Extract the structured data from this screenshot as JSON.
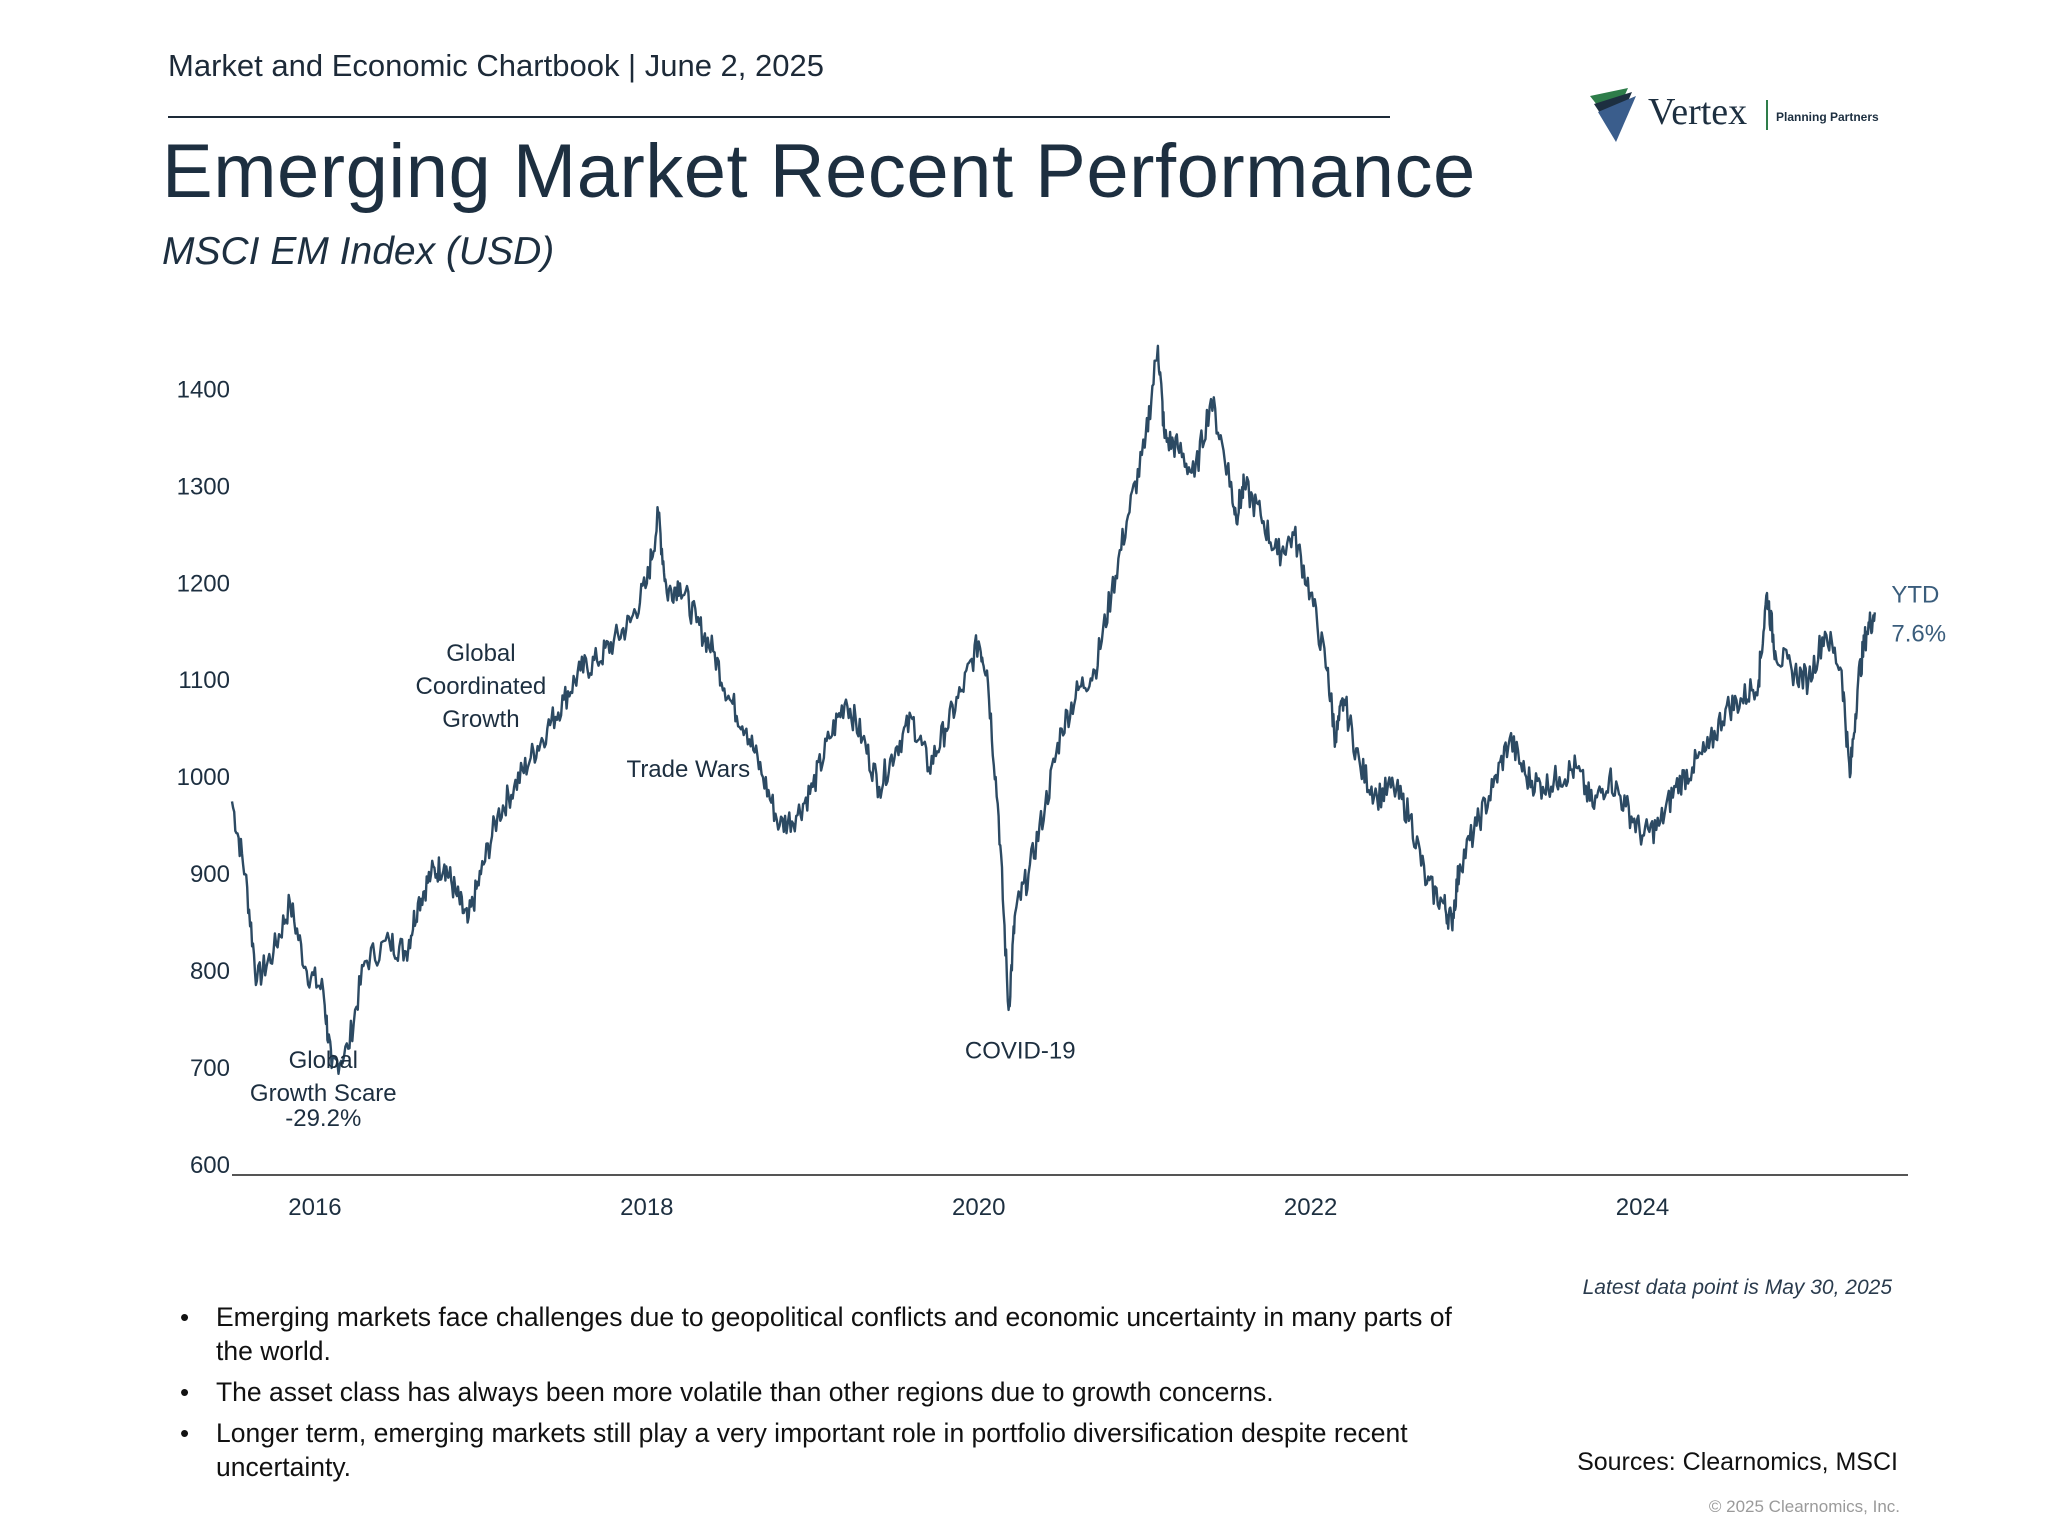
{
  "header": {
    "line": "Market and Economic Chartbook | June 2, 2025",
    "title": "Emerging Market Recent Performance",
    "subtitle": "MSCI EM Index (USD)"
  },
  "logo": {
    "name": "Vertex",
    "tagline": "Planning Partners",
    "icon": "chevron-stripes-icon"
  },
  "colors": {
    "line": "#2c4a63",
    "text": "#1d2f40",
    "axis": "#333333",
    "logo_green": "#2e7d4a"
  },
  "chart_data": {
    "type": "line",
    "title": "MSCI EM Index (USD)",
    "xlabel": "",
    "ylabel": "",
    "x_range": [
      2015.5,
      2025.6
    ],
    "ylim": [
      600,
      1420
    ],
    "y_ticks": [
      600,
      700,
      800,
      900,
      1000,
      1100,
      1200,
      1300,
      1400
    ],
    "x_ticks": [
      {
        "value": 2016,
        "label": "2016"
      },
      {
        "value": 2018,
        "label": "2018"
      },
      {
        "value": 2020,
        "label": "2020"
      },
      {
        "value": 2022,
        "label": "2022"
      },
      {
        "value": 2024,
        "label": "2024"
      }
    ],
    "grid": false,
    "series": [
      {
        "name": "MSCI EM Index (USD)",
        "x": [
          2015.5,
          2015.58,
          2015.65,
          2015.75,
          2015.85,
          2015.95,
          2016.05,
          2016.1,
          2016.2,
          2016.3,
          2016.45,
          2016.55,
          2016.62,
          2016.7,
          2016.78,
          2016.85,
          2016.92,
          2017.0,
          2017.1,
          2017.2,
          2017.3,
          2017.4,
          2017.5,
          2017.6,
          2017.7,
          2017.8,
          2017.9,
          2018.0,
          2018.07,
          2018.12,
          2018.2,
          2018.3,
          2018.4,
          2018.5,
          2018.6,
          2018.7,
          2018.8,
          2018.9,
          2019.0,
          2019.1,
          2019.2,
          2019.3,
          2019.4,
          2019.5,
          2019.6,
          2019.7,
          2019.8,
          2019.9,
          2020.0,
          2020.05,
          2020.12,
          2020.18,
          2020.22,
          2020.3,
          2020.4,
          2020.5,
          2020.6,
          2020.7,
          2020.8,
          2020.9,
          2021.0,
          2021.08,
          2021.12,
          2021.2,
          2021.3,
          2021.4,
          2021.5,
          2021.55,
          2021.6,
          2021.7,
          2021.8,
          2021.9,
          2022.0,
          2022.1,
          2022.15,
          2022.2,
          2022.3,
          2022.4,
          2022.5,
          2022.6,
          2022.7,
          2022.8,
          2022.85,
          2022.9,
          2023.0,
          2023.1,
          2023.2,
          2023.3,
          2023.4,
          2023.5,
          2023.6,
          2023.7,
          2023.8,
          2023.9,
          2024.0,
          2024.1,
          2024.2,
          2024.3,
          2024.4,
          2024.5,
          2024.6,
          2024.7,
          2024.75,
          2024.8,
          2024.9,
          2025.0,
          2025.1,
          2025.2,
          2025.25,
          2025.3,
          2025.35,
          2025.4
        ],
        "values": [
          975,
          900,
          790,
          820,
          870,
          800,
          780,
          700,
          720,
          810,
          830,
          820,
          870,
          900,
          910,
          880,
          850,
          900,
          960,
          990,
          1020,
          1050,
          1080,
          1110,
          1120,
          1140,
          1160,
          1200,
          1270,
          1190,
          1200,
          1160,
          1130,
          1080,
          1050,
          1000,
          950,
          960,
          990,
          1040,
          1080,
          1040,
          990,
          1030,
          1060,
          1010,
          1050,
          1090,
          1140,
          1110,
          960,
          760,
          860,
          900,
          970,
          1050,
          1090,
          1110,
          1190,
          1270,
          1340,
          1445,
          1350,
          1340,
          1310,
          1390,
          1320,
          1270,
          1300,
          1270,
          1230,
          1250,
          1190,
          1110,
          1040,
          1080,
          1010,
          980,
          990,
          960,
          890,
          870,
          850,
          910,
          950,
          990,
          1040,
          1000,
          990,
          1000,
          1010,
          970,
          1000,
          970,
          940,
          950,
          990,
          1010,
          1030,
          1070,
          1080,
          1100,
          1190,
          1130,
          1110,
          1100,
          1150,
          1110,
          1000,
          1100,
          1150,
          1170
        ]
      }
    ],
    "annotations": [
      {
        "text": "Global Growth Scare",
        "x": 2016.05,
        "y": 700
      },
      {
        "text": "-29.2%",
        "x": 2016.05,
        "y": 640
      },
      {
        "text": "Global Coordinated Growth",
        "x": 2017.0,
        "y": 1120
      },
      {
        "text": "Trade Wars",
        "x": 2018.25,
        "y": 1000
      },
      {
        "text": "COVID-19",
        "x": 2020.25,
        "y": 710
      },
      {
        "text": "YTD",
        "x": 2025.5,
        "y": 1180
      },
      {
        "text": "7.6%",
        "x": 2025.5,
        "y": 1140
      }
    ]
  },
  "notes": {
    "bullets": [
      "Emerging markets face challenges due to geopolitical conflicts and economic uncertainty in many parts of the world.",
      "The asset class has always been more volatile than other regions due to growth concerns.",
      "Longer term, emerging markets still play a very important role in portfolio diversification despite recent uncertainty."
    ],
    "latest": "Latest data point is May 30, 2025",
    "sources": "Sources: Clearnomics, MSCI",
    "copyright": "© 2025 Clearnomics, Inc."
  }
}
